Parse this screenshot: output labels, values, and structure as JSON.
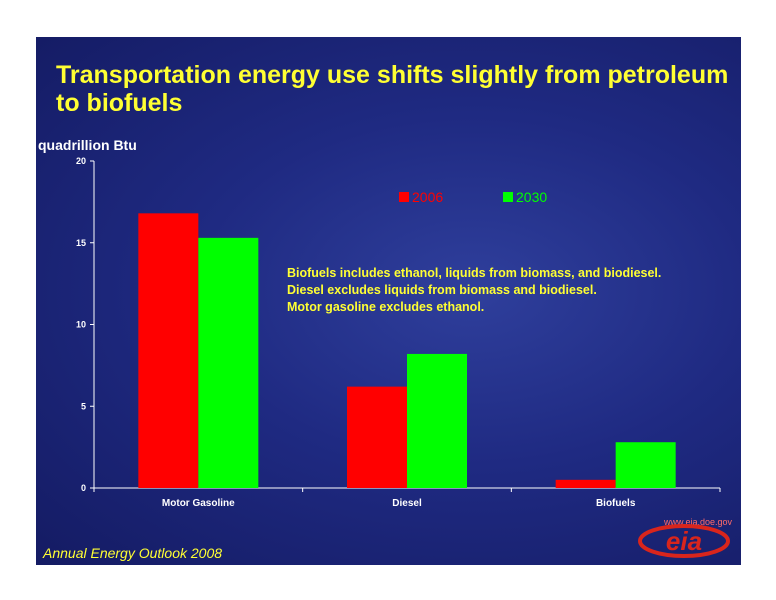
{
  "slide": {
    "title": "Transportation energy use shifts slightly from petroleum to biofuels",
    "footer": "Annual Energy Outlook 2008",
    "logo": {
      "url": "www.eia.doe.gov",
      "mark": "eia"
    },
    "notes": [
      "Biofuels includes ethanol, liquids from biomass, and biodiesel.",
      "Diesel excludes liquids from biomass and biodiesel.",
      "Motor gasoline excludes ethanol."
    ]
  },
  "chart_data": {
    "type": "bar",
    "title": "Transportation energy use shifts slightly from petroleum to biofuels",
    "ylabel": "quadrillion Btu",
    "xlabel": "",
    "categories": [
      "Motor Gasoline",
      "Diesel",
      "Biofuels"
    ],
    "series": [
      {
        "name": "2006",
        "values": [
          16.8,
          6.2,
          0.5
        ],
        "color": "#ff0000"
      },
      {
        "name": "2030",
        "values": [
          15.3,
          8.2,
          2.8
        ],
        "color": "#00ff00"
      }
    ],
    "ylim": [
      0,
      20
    ],
    "yticks": [
      0,
      5,
      10,
      15,
      20
    ],
    "grid": false,
    "legend_placement": "top-right"
  },
  "colors": {
    "background": "#1f2a82",
    "title": "#ffff33",
    "axis": "#ffffff",
    "logo": "#d9251c"
  }
}
